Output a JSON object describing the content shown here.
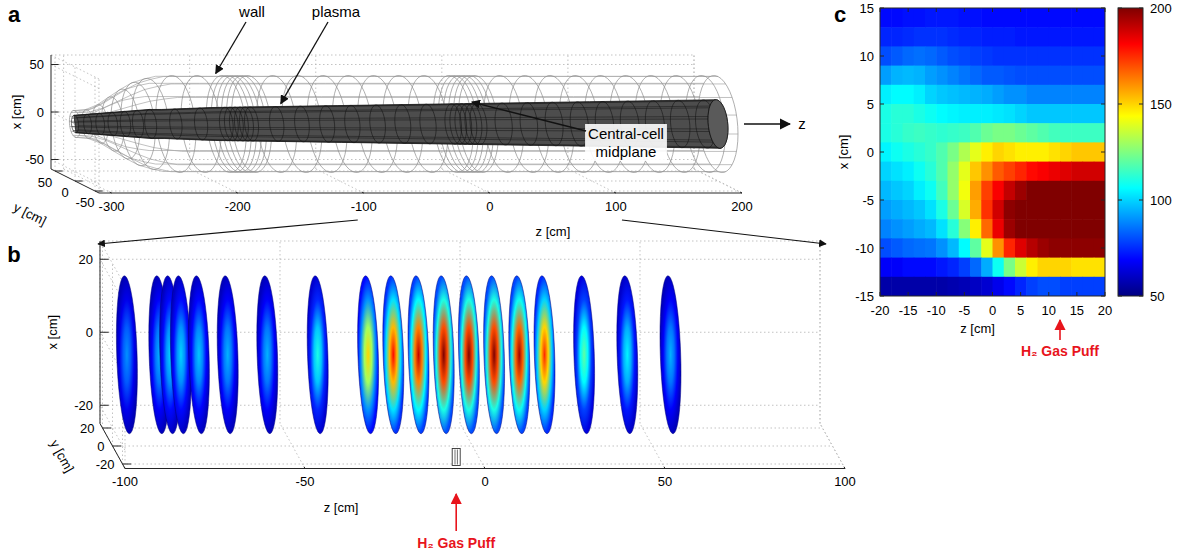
{
  "chart_data": [
    {
      "type": "3d_mesh",
      "panel": "a",
      "xlabel": "x [cm]",
      "ylabel": "y [cm]",
      "zlabel": "z [cm]",
      "xlim": [
        -60,
        60
      ],
      "ylim": [
        -60,
        60
      ],
      "zlim": [
        -310,
        200
      ],
      "xticks": [
        -50,
        0,
        50
      ],
      "yticks": [
        -50,
        0,
        50
      ],
      "zticks": [
        -300,
        -200,
        -100,
        0,
        100,
        200
      ],
      "z_profile": [
        -310,
        -300,
        -290,
        -280,
        -270,
        -260,
        -250,
        -240,
        -220,
        -200,
        -150,
        -100,
        -50,
        0,
        50,
        100,
        150,
        200
      ],
      "wall_radius": [
        14,
        15,
        20,
        28,
        36,
        43,
        47,
        50,
        50,
        50,
        50,
        50,
        50,
        50,
        50,
        50,
        50,
        50
      ],
      "plasma_radius": [
        9,
        10,
        11,
        12,
        13,
        14,
        15,
        15,
        16,
        17,
        18,
        19,
        20,
        21,
        22,
        23,
        24,
        25
      ],
      "wall_rings": [
        -310,
        -300,
        -290,
        -280,
        -270,
        -260,
        -250,
        -230,
        -210,
        -190,
        -186,
        -182,
        -178,
        -174,
        -170,
        -150,
        -130,
        -110,
        -90,
        -70,
        -50,
        -30,
        -10,
        -6,
        -2,
        2,
        6,
        10,
        30,
        50,
        70,
        90,
        110,
        130,
        150,
        170,
        190,
        200
      ],
      "annotations": [
        "wall",
        "plasma",
        "Central-cell midplane"
      ],
      "axis_arrow": "z"
    },
    {
      "type": "3d_slices",
      "panel": "b",
      "xlabel": "x [cm]",
      "ylabel": "y [cm]",
      "zlabel": "z [cm]",
      "xlim": [
        -25,
        25
      ],
      "ylim": [
        -25,
        25
      ],
      "zlim": [
        -100,
        100
      ],
      "xticks": [
        -20,
        0,
        20
      ],
      "yticks": [
        -20,
        0,
        20
      ],
      "zticks": [
        -100,
        -50,
        0,
        50,
        100
      ],
      "slices": {
        "z": [
          -96,
          -87,
          -84,
          -81,
          -76,
          -68,
          -57,
          -43,
          -29,
          -22,
          -15,
          -8,
          -1,
          6,
          13,
          20,
          31,
          43,
          55
        ],
        "peak": [
          90,
          95,
          100,
          100,
          98,
          95,
          95,
          110,
          150,
          180,
          190,
          200,
          200,
          200,
          195,
          175,
          120,
          105,
          95
        ]
      },
      "slice_radius": 21,
      "gas_puff": {
        "text": "H₂ Gas Puff",
        "z": -8
      }
    },
    {
      "type": "heatmap",
      "panel": "c",
      "xlabel": "z [cm]",
      "ylabel": "x [cm]",
      "xlim": [
        -20,
        20
      ],
      "ylim": [
        -15,
        15
      ],
      "xticks": [
        -20,
        -15,
        -10,
        -5,
        0,
        5,
        10,
        15,
        20
      ],
      "yticks": [
        -15,
        -10,
        -5,
        0,
        5,
        10,
        15
      ],
      "x": [
        -19,
        -17,
        -15,
        -13,
        -11,
        -9,
        -7,
        -5,
        -3,
        -1,
        1,
        3,
        5,
        7,
        9,
        11,
        13,
        15,
        17,
        19
      ],
      "y": [
        14,
        12,
        10,
        8,
        6,
        4,
        2,
        0,
        -2,
        -4,
        -6,
        -8,
        -10,
        -12,
        -14
      ],
      "cells": [
        [
          70,
          70,
          71,
          71,
          72,
          72,
          72,
          71,
          71,
          70,
          70,
          70,
          70,
          70,
          70,
          70,
          70,
          70,
          70,
          70
        ],
        [
          74,
          74,
          75,
          76,
          76,
          76,
          75,
          74,
          74,
          73,
          73,
          73,
          72,
          72,
          72,
          72,
          72,
          72,
          72,
          72
        ],
        [
          80,
          82,
          84,
          85,
          84,
          82,
          80,
          79,
          78,
          77,
          76,
          76,
          76,
          76,
          76,
          76,
          76,
          76,
          76,
          76
        ],
        [
          92,
          95,
          96,
          95,
          92,
          90,
          88,
          86,
          84,
          82,
          82,
          81,
          80,
          80,
          80,
          80,
          80,
          80,
          80,
          80
        ],
        [
          104,
          106,
          106,
          104,
          100,
          98,
          97,
          96,
          95,
          94,
          92,
          90,
          90,
          88,
          88,
          88,
          88,
          88,
          88,
          88
        ],
        [
          110,
          112,
          112,
          110,
          108,
          106,
          105,
          104,
          104,
          104,
          103,
          102,
          100,
          98,
          98,
          98,
          98,
          98,
          98,
          98
        ],
        [
          110,
          112,
          114,
          115,
          114,
          113,
          114,
          115,
          118,
          122,
          124,
          124,
          122,
          120,
          118,
          116,
          115,
          115,
          115,
          115
        ],
        [
          105,
          108,
          110,
          112,
          114,
          118,
          124,
          132,
          140,
          146,
          150,
          148,
          146,
          146,
          146,
          148,
          150,
          152,
          152,
          152
        ],
        [
          100,
          102,
          104,
          108,
          112,
          118,
          128,
          140,
          152,
          160,
          168,
          172,
          176,
          180,
          182,
          184,
          186,
          188,
          188,
          188
        ],
        [
          96,
          98,
          100,
          104,
          108,
          116,
          128,
          142,
          158,
          172,
          182,
          190,
          196,
          200,
          200,
          200,
          200,
          200,
          200,
          200
        ],
        [
          92,
          94,
          96,
          98,
          102,
          110,
          122,
          138,
          156,
          174,
          188,
          198,
          200,
          200,
          200,
          200,
          200,
          200,
          200,
          200
        ],
        [
          88,
          90,
          92,
          94,
          96,
          102,
          112,
          126,
          146,
          166,
          184,
          196,
          200,
          200,
          200,
          200,
          200,
          200,
          200,
          200
        ],
        [
          80,
          82,
          84,
          85,
          86,
          90,
          96,
          106,
          120,
          140,
          160,
          176,
          186,
          192,
          196,
          198,
          198,
          198,
          198,
          198
        ],
        [
          68,
          68,
          70,
          70,
          70,
          72,
          74,
          78,
          84,
          94,
          108,
          124,
          136,
          146,
          150,
          150,
          150,
          148,
          148,
          148
        ],
        [
          56,
          56,
          56,
          56,
          56,
          56,
          57,
          58,
          60,
          62,
          66,
          70,
          74,
          78,
          80,
          80,
          78,
          78,
          78,
          78
        ]
      ],
      "colorbar": {
        "range": [
          50,
          200
        ],
        "ticks": [
          50,
          100,
          150,
          200
        ]
      },
      "gas_puff": {
        "text": "H₂ Gas Puff",
        "z": 12
      }
    }
  ]
}
